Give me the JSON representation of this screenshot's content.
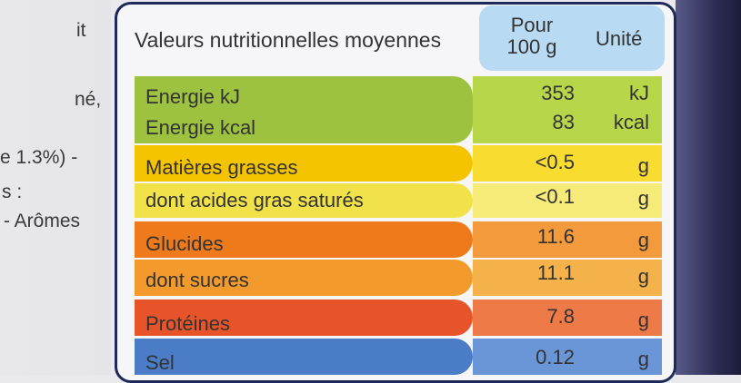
{
  "left_text": [
    "it",
    "né,",
    "e 1.3%) -",
    "s :",
    "- Arômes"
  ],
  "header": {
    "label": "Valeurs nutritionnelles moyennes",
    "pour_line1": "Pour",
    "pour_line2": "100 g",
    "unit": "Unité"
  },
  "rows": [
    {
      "label": "Energie kJ",
      "value": "353",
      "unit": "kJ"
    },
    {
      "label": "Energie kcal",
      "value": "83",
      "unit": "kcal"
    },
    {
      "label": "Matières grasses",
      "value": "<0.5",
      "unit": "g"
    },
    {
      "label": "dont acides gras saturés",
      "value": "<0.1",
      "unit": "g"
    },
    {
      "label": "Glucides",
      "value": "11.6",
      "unit": "g"
    },
    {
      "label": "dont sucres",
      "value": "11.1",
      "unit": "g"
    },
    {
      "label": "Protéines",
      "value": "7.8",
      "unit": "g"
    },
    {
      "label": "Sel",
      "value": "0.12",
      "unit": "g"
    }
  ],
  "colors": {
    "energy_label": "#9cc23f",
    "energy_value": "#b8d64a",
    "fat_label": "#f5c400",
    "fat_value": "#f9dc30",
    "satfat_label": "#f2e24a",
    "satfat_value": "#f6ea78",
    "carb_label": "#ee7a1c",
    "carb_value": "#f29a3c",
    "sugar_label": "#f29a2c",
    "sugar_value": "#f5b24a",
    "protein_label": "#e8542a",
    "protein_value": "#ee7a48",
    "salt_label": "#4a7cc8",
    "salt_value": "#6a96d8"
  }
}
